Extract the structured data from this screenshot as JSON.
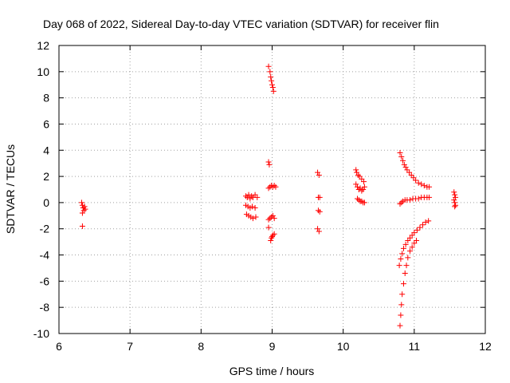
{
  "chart_data": {
    "type": "scatter",
    "title": "Day 068 of 2022, Sidereal Day-to-day VTEC variation (SDTVAR) for receiver flin",
    "xlabel": "GPS time / hours",
    "ylabel": "SDTVAR / TECUs",
    "xlim": [
      6,
      12
    ],
    "ylim": [
      -10,
      12
    ],
    "xticks": [
      "6",
      "7",
      "8",
      "9",
      "10",
      "11",
      "12"
    ],
    "yticks": [
      "-10",
      "-8",
      "-6",
      "-4",
      "-2",
      "0",
      "2",
      "4",
      "6",
      "8",
      "10",
      "12"
    ],
    "grid": true,
    "marker": "+",
    "color": "#ff0000",
    "series": [
      {
        "values": [
          [
            6.32,
            0.0
          ],
          [
            6.33,
            -0.2
          ],
          [
            6.34,
            -0.4
          ],
          [
            6.35,
            -0.6
          ],
          [
            6.33,
            -0.8
          ],
          [
            6.33,
            -1.8
          ],
          [
            6.36,
            -0.3
          ],
          [
            6.37,
            -0.5
          ],
          [
            8.63,
            0.5
          ],
          [
            8.65,
            0.4
          ],
          [
            8.67,
            0.6
          ],
          [
            8.69,
            0.3
          ],
          [
            8.71,
            0.5
          ],
          [
            8.73,
            0.4
          ],
          [
            8.76,
            0.6
          ],
          [
            8.79,
            0.4
          ],
          [
            8.63,
            -0.2
          ],
          [
            8.66,
            -0.3
          ],
          [
            8.69,
            -0.4
          ],
          [
            8.72,
            -0.3
          ],
          [
            8.76,
            -0.4
          ],
          [
            8.64,
            -0.9
          ],
          [
            8.67,
            -1.0
          ],
          [
            8.7,
            -1.1
          ],
          [
            8.73,
            -1.2
          ],
          [
            8.77,
            -1.1
          ],
          [
            8.95,
            10.4
          ],
          [
            8.97,
            10.0
          ],
          [
            8.98,
            9.6
          ],
          [
            8.99,
            9.3
          ],
          [
            9.0,
            9.0
          ],
          [
            9.01,
            8.8
          ],
          [
            9.02,
            8.5
          ],
          [
            8.95,
            3.1
          ],
          [
            8.96,
            2.9
          ],
          [
            8.95,
            1.1
          ],
          [
            8.97,
            1.2
          ],
          [
            8.99,
            1.3
          ],
          [
            9.01,
            1.2
          ],
          [
            9.03,
            1.3
          ],
          [
            9.05,
            1.2
          ],
          [
            8.95,
            -1.3
          ],
          [
            8.97,
            -1.2
          ],
          [
            8.99,
            -1.1
          ],
          [
            9.01,
            -1.0
          ],
          [
            9.03,
            -1.2
          ],
          [
            8.95,
            -1.9
          ],
          [
            8.98,
            -2.9
          ],
          [
            8.99,
            -2.7
          ],
          [
            9.0,
            -2.6
          ],
          [
            9.01,
            -2.5
          ],
          [
            9.03,
            -2.4
          ],
          [
            9.64,
            2.3
          ],
          [
            9.66,
            2.1
          ],
          [
            9.65,
            0.4
          ],
          [
            9.67,
            0.4
          ],
          [
            9.65,
            -0.6
          ],
          [
            9.67,
            -0.7
          ],
          [
            9.64,
            -2.0
          ],
          [
            9.66,
            -2.2
          ],
          [
            10.18,
            2.5
          ],
          [
            10.19,
            2.3
          ],
          [
            10.21,
            2.1
          ],
          [
            10.23,
            2.0
          ],
          [
            10.26,
            1.8
          ],
          [
            10.29,
            1.6
          ],
          [
            10.18,
            1.4
          ],
          [
            10.2,
            1.2
          ],
          [
            10.22,
            1.0
          ],
          [
            10.24,
            1.1
          ],
          [
            10.26,
            0.9
          ],
          [
            10.28,
            1.0
          ],
          [
            10.3,
            1.2
          ],
          [
            10.2,
            0.3
          ],
          [
            10.22,
            0.2
          ],
          [
            10.24,
            0.1
          ],
          [
            10.26,
            0.1
          ],
          [
            10.28,
            0.0
          ],
          [
            10.3,
            0.0
          ],
          [
            10.8,
            3.8
          ],
          [
            10.82,
            3.5
          ],
          [
            10.84,
            3.2
          ],
          [
            10.86,
            2.9
          ],
          [
            10.88,
            2.7
          ],
          [
            10.9,
            2.5
          ],
          [
            10.93,
            2.3
          ],
          [
            10.96,
            2.1
          ],
          [
            10.99,
            1.9
          ],
          [
            11.02,
            1.7
          ],
          [
            11.06,
            1.5
          ],
          [
            11.1,
            1.4
          ],
          [
            11.14,
            1.3
          ],
          [
            11.18,
            1.2
          ],
          [
            11.21,
            1.2
          ],
          [
            10.8,
            -0.1
          ],
          [
            10.82,
            0.0
          ],
          [
            10.84,
            0.1
          ],
          [
            10.87,
            0.2
          ],
          [
            10.9,
            0.2
          ],
          [
            10.94,
            0.2
          ],
          [
            10.98,
            0.3
          ],
          [
            11.02,
            0.3
          ],
          [
            11.06,
            0.3
          ],
          [
            11.1,
            0.4
          ],
          [
            11.14,
            0.4
          ],
          [
            11.18,
            0.4
          ],
          [
            11.21,
            0.4
          ],
          [
            10.79,
            -4.8
          ],
          [
            10.81,
            -4.3
          ],
          [
            10.83,
            -3.9
          ],
          [
            10.85,
            -3.5
          ],
          [
            10.88,
            -3.2
          ],
          [
            10.91,
            -2.9
          ],
          [
            10.94,
            -2.7
          ],
          [
            10.97,
            -2.5
          ],
          [
            11.0,
            -2.3
          ],
          [
            11.04,
            -2.1
          ],
          [
            11.08,
            -1.9
          ],
          [
            11.12,
            -1.7
          ],
          [
            11.16,
            -1.5
          ],
          [
            11.2,
            -1.4
          ],
          [
            10.8,
            -9.4
          ],
          [
            10.81,
            -8.6
          ],
          [
            10.82,
            -7.8
          ],
          [
            10.83,
            -7.0
          ],
          [
            10.85,
            -6.2
          ],
          [
            10.87,
            -5.4
          ],
          [
            10.89,
            -4.8
          ],
          [
            10.91,
            -4.2
          ],
          [
            10.94,
            -3.7
          ],
          [
            10.97,
            -3.4
          ],
          [
            11.0,
            -3.1
          ],
          [
            11.03,
            -2.9
          ],
          [
            11.56,
            0.8
          ],
          [
            11.57,
            0.6
          ],
          [
            11.58,
            0.4
          ],
          [
            11.56,
            0.2
          ],
          [
            11.57,
            0.0
          ],
          [
            11.58,
            -0.2
          ],
          [
            11.57,
            -0.3
          ]
        ]
      }
    ]
  }
}
